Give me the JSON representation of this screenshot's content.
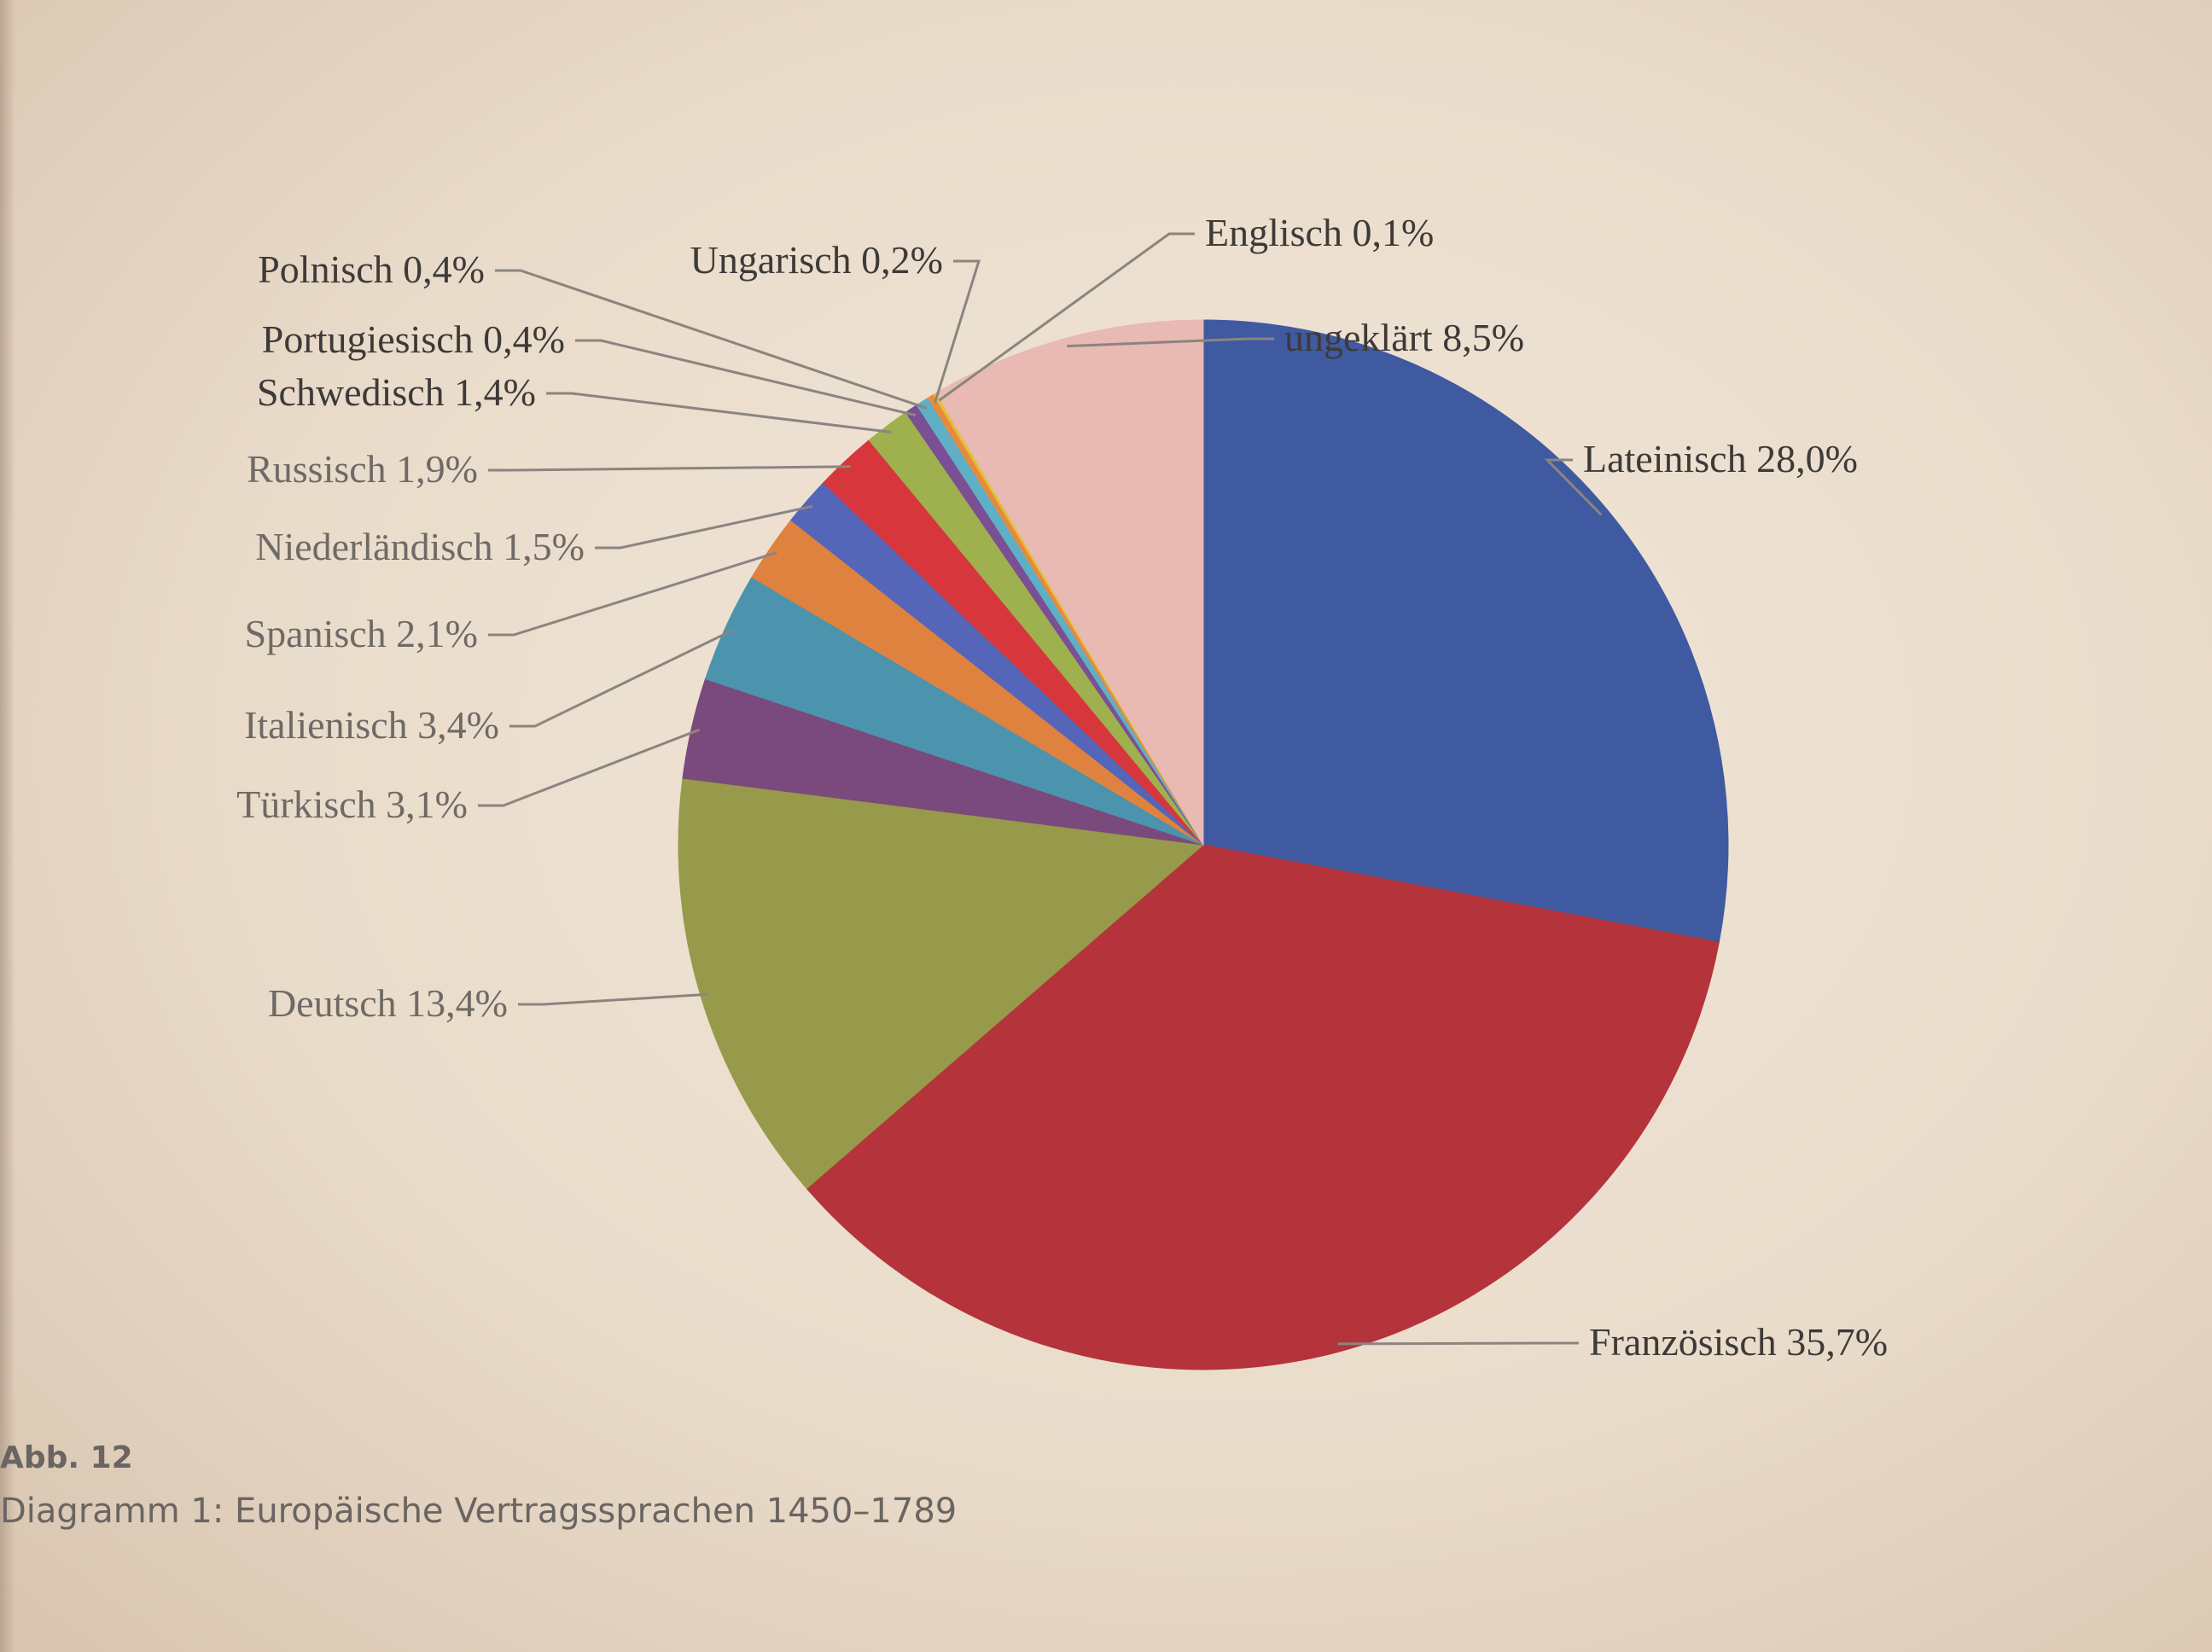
{
  "figure": {
    "number": "Abb. 12",
    "caption": "Diagramm 1: Europäische Vertragssprachen 1450–1789"
  },
  "chart_data": {
    "type": "pie",
    "title": "",
    "start_angle_deg": 90,
    "direction": "clockwise",
    "slices": [
      {
        "name": "Lateinisch",
        "value": 28.0,
        "label": "Lateinisch 28,0%",
        "color": "#3f5aa0"
      },
      {
        "name": "Französisch",
        "value": 35.7,
        "label": "Französisch 35,7%",
        "color": "#b5333a"
      },
      {
        "name": "Deutsch",
        "value": 13.4,
        "label": "Deutsch 13,4%",
        "color": "#979a4a"
      },
      {
        "name": "Türkisch",
        "value": 3.1,
        "label": "Türkisch 3,1%",
        "color": "#7a4a7d"
      },
      {
        "name": "Italienisch",
        "value": 3.4,
        "label": "Italienisch 3,4%",
        "color": "#4c93ad"
      },
      {
        "name": "Spanisch",
        "value": 2.1,
        "label": "Spanisch 2,1%",
        "color": "#e0823f"
      },
      {
        "name": "Niederländisch",
        "value": 1.5,
        "label": "Niederländisch 1,5%",
        "color": "#5566b8"
      },
      {
        "name": "Russisch",
        "value": 1.9,
        "label": "Russisch 1,9%",
        "color": "#d6363c"
      },
      {
        "name": "Schwedisch",
        "value": 1.4,
        "label": "Schwedisch 1,4%",
        "color": "#9fb04e"
      },
      {
        "name": "Portugiesisch",
        "value": 0.4,
        "label": "Portugiesisch 0,4%",
        "color": "#7b4f94"
      },
      {
        "name": "Polnisch",
        "value": 0.4,
        "label": "Polnisch 0,4%",
        "color": "#5fb0c6"
      },
      {
        "name": "Ungarisch",
        "value": 0.2,
        "label": "Ungarisch 0,2%",
        "color": "#e88a3c"
      },
      {
        "name": "Englisch",
        "value": 0.1,
        "label": "Englisch 0,1%",
        "color": "#e2c03a"
      },
      {
        "name": "ungeklärt",
        "value": 8.5,
        "label": "ungeklärt 8,5%",
        "color": "#e9b9b4"
      }
    ]
  }
}
